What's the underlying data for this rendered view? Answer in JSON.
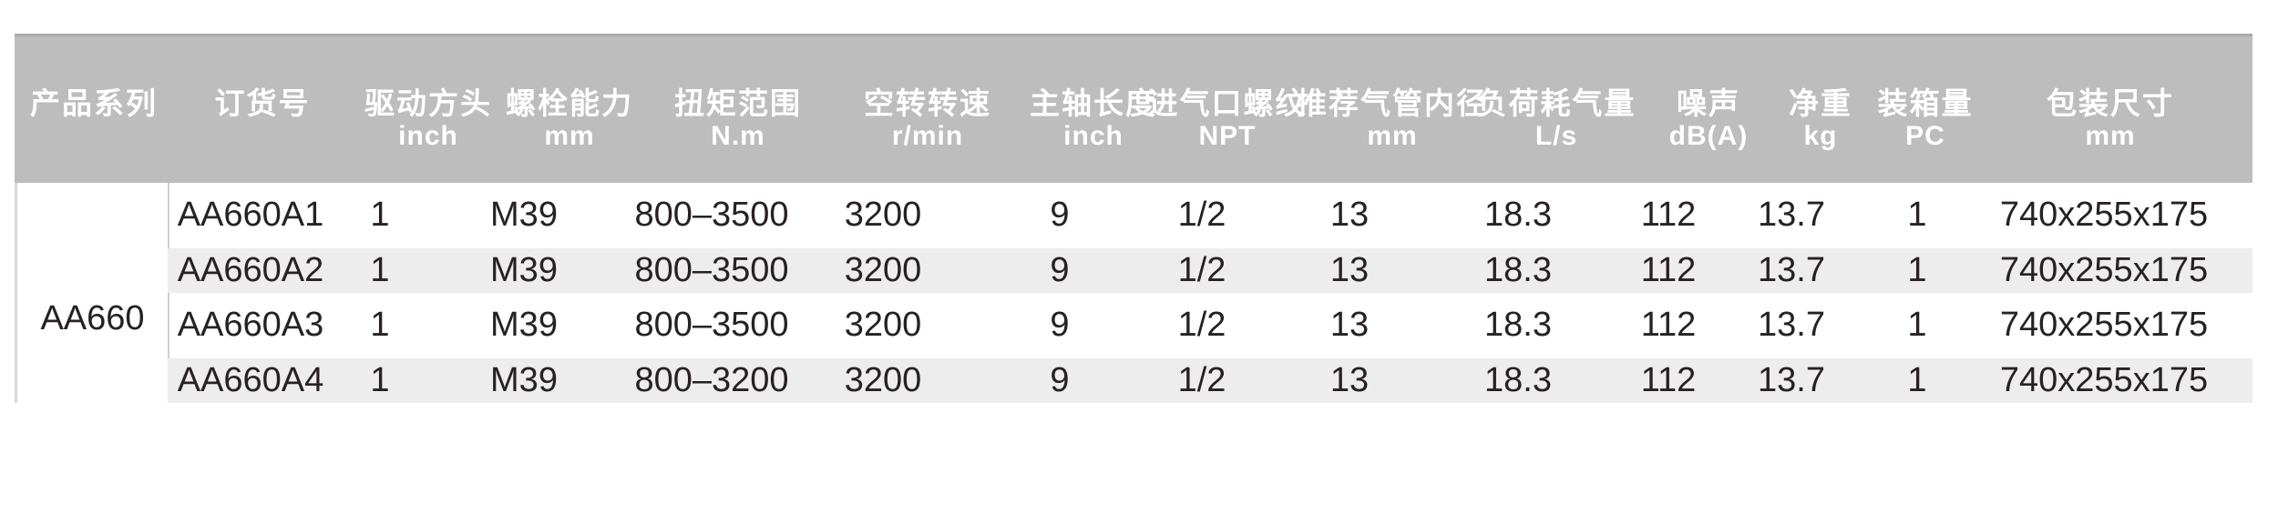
{
  "table": {
    "title_semantic": "air-impact-wrench-specification-table",
    "columns": [
      {
        "id": "series",
        "label": "产品系列",
        "unit": ""
      },
      {
        "id": "order",
        "label": "订货号",
        "unit": ""
      },
      {
        "id": "drive",
        "label": "驱动方头",
        "unit": "inch"
      },
      {
        "id": "bolt",
        "label": "螺栓能力",
        "unit": "mm"
      },
      {
        "id": "torque",
        "label": "扭矩范围",
        "unit": "N.m"
      },
      {
        "id": "speed",
        "label": "空转转速",
        "unit": "r/min"
      },
      {
        "id": "spindle",
        "label": "主轴长度",
        "unit": "inch"
      },
      {
        "id": "inlet",
        "label": "进气口螺纹",
        "unit": "NPT"
      },
      {
        "id": "hose",
        "label": "推荐气管内径",
        "unit": "mm"
      },
      {
        "id": "air",
        "label": "负荷耗气量",
        "unit": "L/s"
      },
      {
        "id": "noise",
        "label": "噪声",
        "unit": "dB(A)"
      },
      {
        "id": "weight",
        "label": "净重",
        "unit": "kg"
      },
      {
        "id": "qty",
        "label": "装箱量",
        "unit": "PC"
      },
      {
        "id": "package",
        "label": "包装尺寸",
        "unit": "mm"
      }
    ],
    "series_label": "AA660",
    "rows": [
      {
        "cells": [
          "AA660A1",
          "1",
          "M39",
          "800–3500",
          "3200",
          "9",
          "1/2",
          "13",
          "18.3",
          "112",
          "13.7",
          "1",
          "740x255x175"
        ]
      },
      {
        "cells": [
          "AA660A2",
          "1",
          "M39",
          "800–3500",
          "3200",
          "9",
          "1/2",
          "13",
          "18.3",
          "112",
          "13.7",
          "1",
          "740x255x175"
        ]
      },
      {
        "cells": [
          "AA660A3",
          "1",
          "M39",
          "800–3500",
          "3200",
          "9",
          "1/2",
          "13",
          "18.3",
          "112",
          "13.7",
          "1",
          "740x255x175"
        ]
      },
      {
        "cells": [
          "AA660A4",
          "1",
          "M39",
          "800–3200",
          "3200",
          "9",
          "1/2",
          "13",
          "18.3",
          "112",
          "13.7",
          "1",
          "740x255x175"
        ]
      }
    ]
  },
  "colors": {
    "header_background": "#bdbdbd",
    "header_top_edge": "#a9a9a9",
    "header_text": "#ffffff",
    "row_stripe": "#ededed",
    "data_text": "#272123",
    "separator_line": "#cfcfcf",
    "page_background": "#ffffff"
  }
}
